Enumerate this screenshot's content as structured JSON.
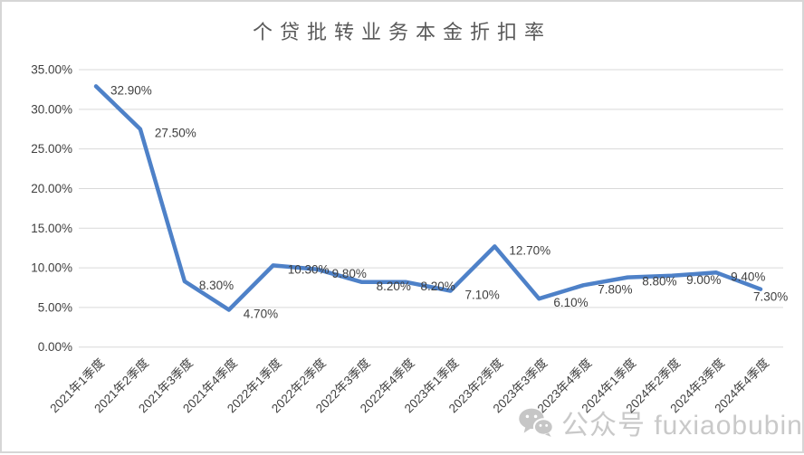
{
  "chart_data": {
    "type": "line",
    "title": "个贷批转业务本金折扣率",
    "categories": [
      "2021年1季度",
      "2021年2季度",
      "2021年3季度",
      "2021年4季度",
      "2022年1季度",
      "2022年2季度",
      "2022年3季度",
      "2022年4季度",
      "2023年1季度",
      "2023年2季度",
      "2023年3季度",
      "2023年4季度",
      "2024年1季度",
      "2024年2季度",
      "2024年3季度",
      "2024年4季度"
    ],
    "values": [
      32.9,
      27.5,
      8.3,
      4.7,
      10.3,
      9.8,
      8.2,
      8.2,
      7.1,
      12.7,
      6.1,
      7.8,
      8.8,
      9.0,
      9.4,
      7.3
    ],
    "point_labels": [
      "32.90%",
      "27.50%",
      "8.30%",
      "4.70%",
      "10.30%",
      "9.80%",
      "8.20%",
      "8.20%",
      "7.10%",
      "12.70%",
      "6.10%",
      "7.80%",
      "8.80%",
      "9.00%",
      "9.40%",
      "7.30%"
    ],
    "y_ticks": [
      "0.00%",
      "5.00%",
      "10.00%",
      "15.00%",
      "20.00%",
      "25.00%",
      "30.00%",
      "35.00%"
    ],
    "ylim": [
      0,
      35
    ],
    "xlabel": "",
    "ylabel": "",
    "grid": true,
    "legend": "none",
    "colors": {
      "line": "#4e81c8",
      "gridline": "#d9d9d9",
      "axis_text": "#404040",
      "title_text": "#595959",
      "watermark_text": "#c9c9c9"
    }
  },
  "watermark": {
    "icon": "wechat-icon",
    "text": "公众号 fuxiaobubin"
  }
}
